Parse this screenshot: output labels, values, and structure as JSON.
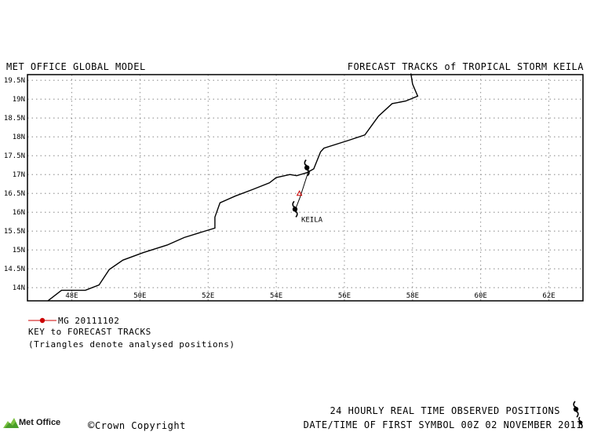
{
  "header": {
    "model": "MET OFFICE GLOBAL MODEL",
    "title": "FORECAST TRACKS of TROPICAL STORM KEILA"
  },
  "map": {
    "lon_range": [
      46.7,
      63.0
    ],
    "lat_range": [
      13.65,
      19.65
    ],
    "lon_ticks": [
      {
        "v": 48,
        "label": "48E"
      },
      {
        "v": 50,
        "label": "50E"
      },
      {
        "v": 52,
        "label": "52E"
      },
      {
        "v": 54,
        "label": "54E"
      },
      {
        "v": 56,
        "label": "56E"
      },
      {
        "v": 58,
        "label": "58E"
      },
      {
        "v": 60,
        "label": "60E"
      },
      {
        "v": 62,
        "label": "62E"
      }
    ],
    "lat_ticks": [
      {
        "v": 14,
        "label": "14N"
      },
      {
        "v": 14.5,
        "label": "14.5N"
      },
      {
        "v": 15,
        "label": "15N"
      },
      {
        "v": 15.5,
        "label": "15.5N"
      },
      {
        "v": 16,
        "label": "16N"
      },
      {
        "v": 16.5,
        "label": "16.5N"
      },
      {
        "v": 17,
        "label": "17N"
      },
      {
        "v": 17.5,
        "label": "17.5N"
      },
      {
        "v": 18,
        "label": "18N"
      },
      {
        "v": 18.5,
        "label": "18.5N"
      },
      {
        "v": 19,
        "label": "19N"
      },
      {
        "v": 19.5,
        "label": "19.5N"
      }
    ],
    "grid": "dotted",
    "coastline": [
      [
        47.3,
        13.65
      ],
      [
        47.7,
        13.93
      ],
      [
        48.4,
        13.93
      ],
      [
        48.8,
        14.07
      ],
      [
        49.1,
        14.48
      ],
      [
        49.5,
        14.73
      ],
      [
        50.1,
        14.93
      ],
      [
        50.8,
        15.13
      ],
      [
        51.3,
        15.33
      ],
      [
        51.8,
        15.47
      ],
      [
        52.2,
        15.58
      ],
      [
        52.2,
        15.87
      ],
      [
        52.35,
        16.25
      ],
      [
        52.8,
        16.43
      ],
      [
        53.3,
        16.6
      ],
      [
        53.8,
        16.78
      ],
      [
        54.0,
        16.92
      ],
      [
        54.4,
        17.0
      ],
      [
        54.6,
        16.97
      ],
      [
        54.9,
        17.05
      ],
      [
        55.1,
        17.15
      ],
      [
        55.3,
        17.6
      ],
      [
        55.4,
        17.7
      ],
      [
        56.1,
        17.9
      ],
      [
        56.6,
        18.05
      ],
      [
        56.8,
        18.3
      ],
      [
        57.0,
        18.55
      ],
      [
        57.4,
        18.88
      ],
      [
        57.8,
        18.95
      ],
      [
        58.15,
        19.08
      ],
      [
        58.0,
        19.4
      ],
      [
        57.95,
        19.68
      ]
    ],
    "storm_label": "KEILA",
    "forecast_track": {
      "name": "MG 20111102",
      "color": "#cc0000",
      "analysed_positions": [
        [
          54.68,
          16.5
        ]
      ]
    },
    "observed_track": {
      "color": "#000000",
      "points": [
        [
          54.55,
          16.05
        ],
        [
          54.7,
          16.4
        ],
        [
          54.95,
          17.1
        ]
      ],
      "symbols": [
        [
          54.55,
          16.08
        ],
        [
          54.9,
          17.18
        ]
      ]
    }
  },
  "key": {
    "entry_label": "MG 20111102",
    "title": "KEY to FORECAST TRACKS",
    "note": "(Triangles denote analysed positions)"
  },
  "footer": {
    "observed": "24 HOURLY REAL TIME OBSERVED POSITIONS",
    "date_time": "DATE/TIME OF FIRST SYMBOL 00Z 02 NOVEMBER 2011",
    "copyright": "Crown Copyright",
    "copyright_symbol": "©",
    "logo_text": "Met Office"
  }
}
